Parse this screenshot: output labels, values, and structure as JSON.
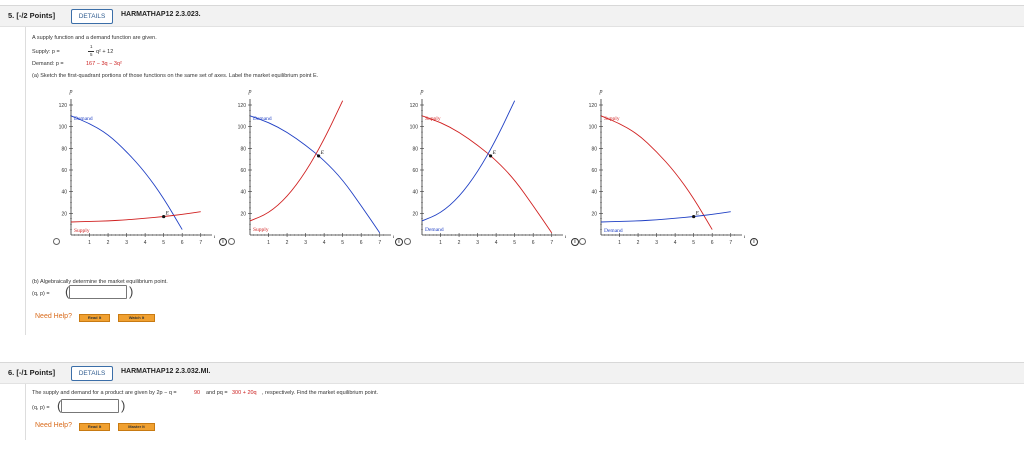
{
  "q1": {
    "number": "5. [-/2 Points]",
    "details": "DETAILS",
    "code": "HARMATHAP12 2.3.023.",
    "intro": "A supply function and a demand function are given.",
    "supply_prefix": "Supply: p =",
    "supply_rest": "q² + 12",
    "frac_num": "1",
    "frac_den": "5",
    "demand_prefix": "Demand: p =",
    "demand_rest": "167 − 3q − 3q²",
    "part_a": "(a) Sketch the first-quadrant portions of those functions on the same set of axes. Label the market equilibrium point E.",
    "part_b": "(b) Algebraically determine the market equilibrium point.",
    "answer_label": "(q, p) =",
    "answer_value": "",
    "need_help": "Need Help?",
    "read_it": "Read It",
    "watch_it": "Watch It"
  },
  "q2": {
    "number": "6. [-/1 Points]",
    "details": "DETAILS",
    "code": "HARMATHAP12 2.3.032.MI.",
    "text_a": "The supply and demand for a product are given by 2p − q =",
    "val1": "90",
    "text_b": "and pq =",
    "val2": "300 + 20q",
    "text_c": ", respectively. Find the market equilibrium point.",
    "answer_label": "(q, p) =",
    "answer_value": "",
    "need_help": "Need Help?",
    "read_it": "Read It",
    "master_it": "Master It"
  },
  "graph_common": {
    "p_label": "p",
    "q_label": "q",
    "e_label": "E",
    "y_ticks": [
      "120",
      "100",
      "80",
      "60",
      "40",
      "20"
    ],
    "x_ticks": [
      "1",
      "2",
      "3",
      "4",
      "5",
      "6",
      "7"
    ]
  },
  "chart_data": [
    {
      "type": "line",
      "xlim": [
        0,
        7.5
      ],
      "ylim": [
        0,
        120
      ],
      "series": [
        {
          "name": "Demand",
          "color": "#1f3fc4",
          "x": [
            0,
            1,
            2,
            3,
            4,
            5,
            6
          ],
          "y": [
            110,
            103,
            93,
            77,
            58,
            34,
            5
          ]
        },
        {
          "name": "Supply",
          "color": "#d02020",
          "x": [
            0,
            1,
            2,
            3,
            4,
            5,
            6,
            7
          ],
          "y": [
            12,
            12.5,
            13,
            14,
            15.5,
            17,
            19,
            21.5
          ]
        }
      ],
      "equilibrium": {
        "label": "E",
        "x": 5,
        "y": 17
      }
    },
    {
      "type": "line",
      "xlim": [
        0,
        7.5
      ],
      "ylim": [
        0,
        120
      ],
      "series": [
        {
          "name": "Demand",
          "color": "#1f3fc4",
          "x": [
            0,
            1,
            2,
            3,
            4,
            5,
            6,
            7
          ],
          "y": [
            110,
            104,
            95,
            83,
            69,
            51,
            27,
            2
          ]
        },
        {
          "name": "Supply",
          "color": "#d02020",
          "x": [
            0,
            1,
            2,
            3,
            4,
            5
          ],
          "y": [
            13,
            20,
            35,
            58,
            88,
            124
          ]
        }
      ],
      "equilibrium": {
        "label": "E",
        "x": 3.7,
        "y": 73
      }
    },
    {
      "type": "line",
      "xlim": [
        0,
        7.5
      ],
      "ylim": [
        0,
        120
      ],
      "series": [
        {
          "name": "Supply",
          "color": "#d02020",
          "x": [
            0,
            1,
            2,
            3,
            4,
            5,
            6,
            7
          ],
          "y": [
            110,
            104,
            95,
            83,
            69,
            51,
            27,
            2
          ]
        },
        {
          "name": "Demand",
          "color": "#1f3fc4",
          "x": [
            0,
            1,
            2,
            3,
            4,
            5
          ],
          "y": [
            13,
            20,
            35,
            58,
            88,
            124
          ]
        }
      ],
      "equilibrium": {
        "label": "E",
        "x": 3.7,
        "y": 73
      }
    },
    {
      "type": "line",
      "xlim": [
        0,
        7.5
      ],
      "ylim": [
        0,
        120
      ],
      "series": [
        {
          "name": "Supply",
          "color": "#d02020",
          "x": [
            0,
            1,
            2,
            3,
            4,
            5,
            6
          ],
          "y": [
            110,
            103,
            93,
            77,
            58,
            34,
            5
          ]
        },
        {
          "name": "Demand",
          "color": "#1f3fc4",
          "x": [
            0,
            1,
            2,
            3,
            4,
            5,
            6,
            7
          ],
          "y": [
            12,
            12.5,
            13,
            14,
            15.5,
            17,
            19,
            21.5
          ]
        }
      ],
      "equilibrium": {
        "label": "E",
        "x": 5,
        "y": 17
      }
    }
  ]
}
